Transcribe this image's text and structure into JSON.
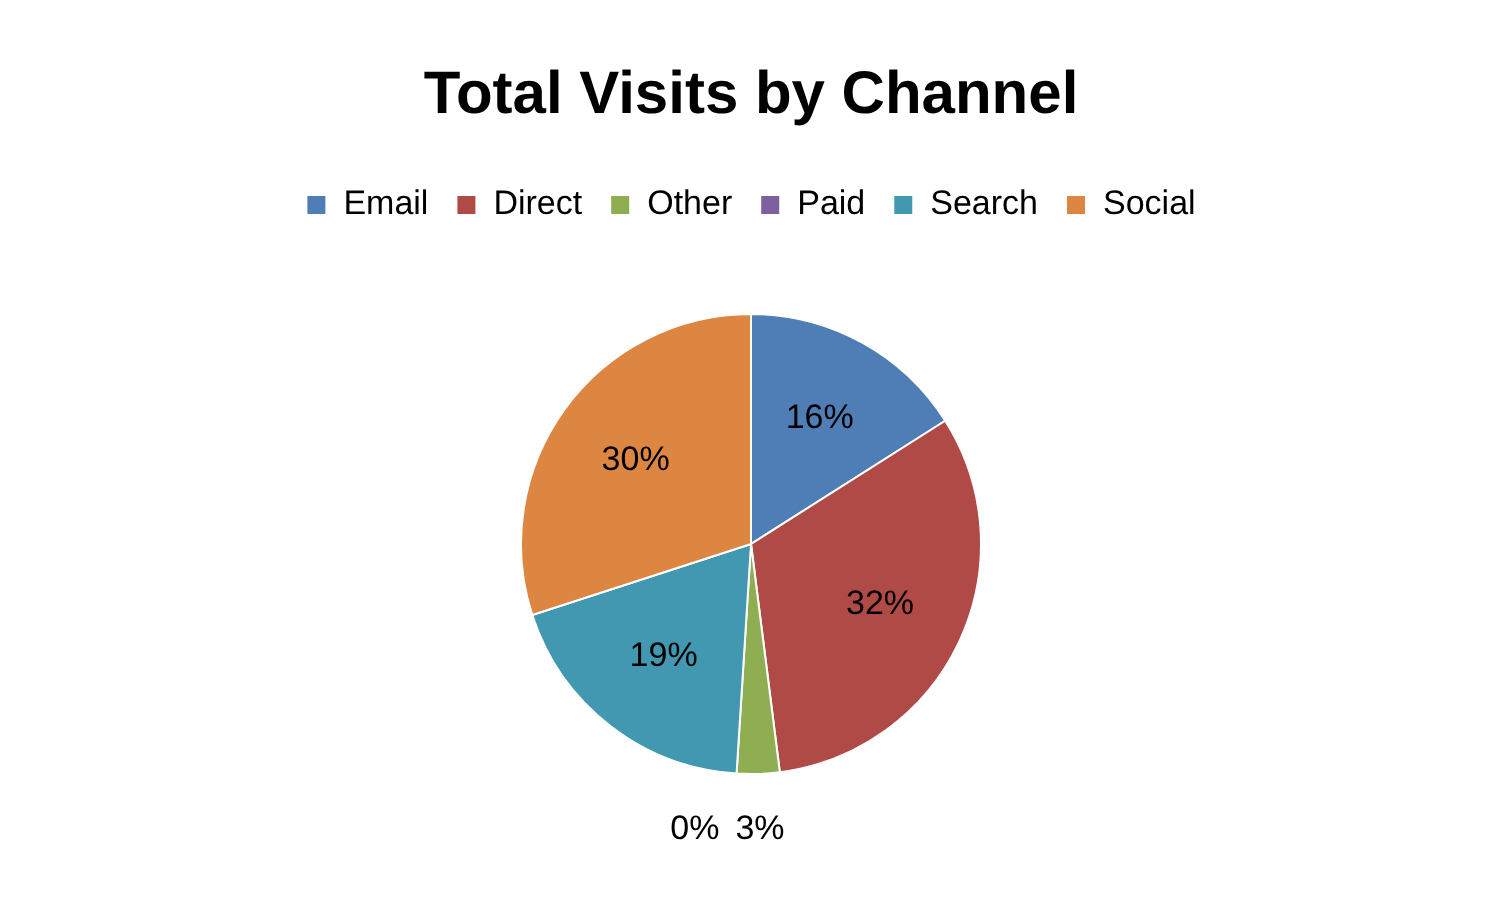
{
  "chart_data": {
    "type": "pie",
    "title": "Total Visits by Channel",
    "categories": [
      "Email",
      "Direct",
      "Other",
      "Paid",
      "Search",
      "Social"
    ],
    "values": [
      16,
      32,
      3,
      0,
      19,
      30
    ],
    "value_labels": [
      "16%",
      "32%",
      "3%",
      "0%",
      "19%",
      "30%"
    ],
    "colors": [
      "#4f7db5",
      "#b04a46",
      "#8fae52",
      "#7d60a0",
      "#4198b0",
      "#dc8641"
    ],
    "legend": "top"
  }
}
